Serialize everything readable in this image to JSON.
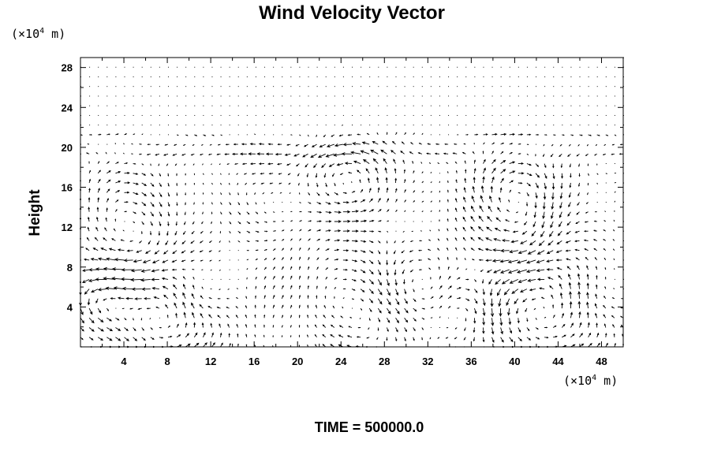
{
  "chart_data": {
    "type": "vector-field",
    "title": "Wind Velocity Vector",
    "ylabel": "Height",
    "xlabel": "",
    "x_unit": {
      "prefix": "(×10",
      "exp": "4",
      "suffix": " m)"
    },
    "y_unit": {
      "prefix": "(×10",
      "exp": "4",
      "suffix": " m)"
    },
    "xlim": [
      0,
      50
    ],
    "ylim": [
      0,
      29
    ],
    "x_ticks": [
      "4",
      "8",
      "12",
      "16",
      "20",
      "24",
      "28",
      "32",
      "36",
      "40",
      "44",
      "48"
    ],
    "y_ticks": [
      "4",
      "8",
      "12",
      "16",
      "20",
      "24",
      "28"
    ],
    "grid": false,
    "footer": "TIME = 500000.0"
  }
}
